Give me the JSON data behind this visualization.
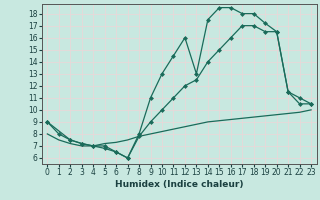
{
  "title": "",
  "xlabel": "Humidex (Indice chaleur)",
  "bg_color": "#c8e8e0",
  "grid_color": "#e8d8d8",
  "line_color": "#1a6b5a",
  "xlim": [
    -0.5,
    23.5
  ],
  "ylim": [
    5.5,
    18.8
  ],
  "xticks": [
    0,
    1,
    2,
    3,
    4,
    5,
    6,
    7,
    8,
    9,
    10,
    11,
    12,
    13,
    14,
    15,
    16,
    17,
    18,
    19,
    20,
    21,
    22,
    23
  ],
  "yticks": [
    6,
    7,
    8,
    9,
    10,
    11,
    12,
    13,
    14,
    15,
    16,
    17,
    18
  ],
  "line1_x": [
    0,
    1,
    2,
    3,
    4,
    5,
    6,
    7,
    8,
    9,
    10,
    11,
    12,
    13,
    14,
    15,
    16,
    17,
    18,
    19,
    20,
    21,
    22,
    23
  ],
  "line1_y": [
    9,
    8,
    7.5,
    7.2,
    7,
    6.8,
    6.5,
    6,
    8,
    11,
    13,
    14.5,
    16,
    13,
    17.5,
    18.5,
    18.5,
    18,
    18,
    17.2,
    16.5,
    11.5,
    10.5,
    10.5
  ],
  "line2_x": [
    0,
    2,
    3,
    4,
    5,
    6,
    7,
    8,
    9,
    10,
    11,
    12,
    13,
    14,
    15,
    16,
    17,
    18,
    19,
    20,
    21,
    22,
    23
  ],
  "line2_y": [
    9,
    7.5,
    7.2,
    7,
    7,
    6.5,
    6,
    7.8,
    9,
    10,
    11,
    12,
    12.5,
    14,
    15,
    16,
    17,
    17,
    16.5,
    16.5,
    11.5,
    11,
    10.5
  ],
  "line3_x": [
    0,
    1,
    2,
    3,
    4,
    5,
    6,
    7,
    8,
    9,
    10,
    11,
    12,
    13,
    14,
    15,
    16,
    17,
    18,
    19,
    20,
    21,
    22,
    23
  ],
  "line3_y": [
    8.0,
    7.5,
    7.2,
    7.0,
    7.0,
    7.2,
    7.3,
    7.5,
    7.8,
    8.0,
    8.2,
    8.4,
    8.6,
    8.8,
    9.0,
    9.1,
    9.2,
    9.3,
    9.4,
    9.5,
    9.6,
    9.7,
    9.8,
    10.0
  ]
}
